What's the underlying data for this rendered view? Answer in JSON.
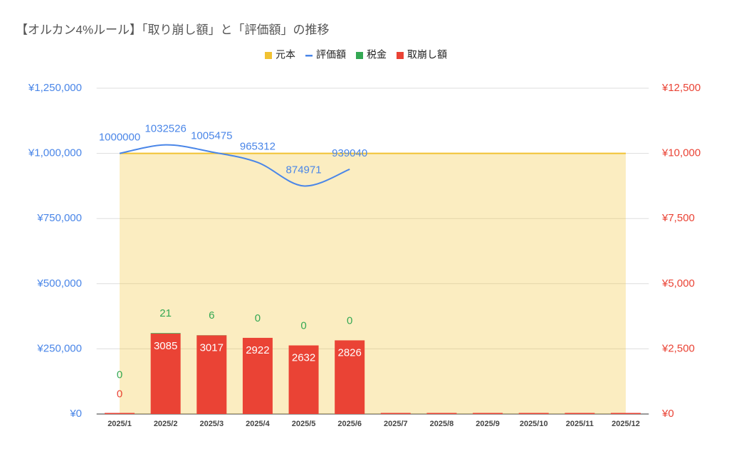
{
  "chart_data": {
    "type": "combo",
    "title": "【オルカン4%ルール】「取り崩し額」と「評価額」の推移",
    "categories": [
      "2025/1",
      "2025/2",
      "2025/3",
      "2025/4",
      "2025/5",
      "2025/6",
      "2025/7",
      "2025/8",
      "2025/9",
      "2025/10",
      "2025/11",
      "2025/12"
    ],
    "series": [
      {
        "name": "元本",
        "type": "area",
        "axis": "y",
        "color": "#f1c232",
        "values": [
          1000000,
          1000000,
          1000000,
          1000000,
          1000000,
          1000000,
          1000000,
          1000000,
          1000000,
          1000000,
          1000000,
          1000000
        ]
      },
      {
        "name": "評価額",
        "type": "line",
        "axis": "y",
        "color": "#4a86e8",
        "values": [
          1000000,
          1032526,
          1005475,
          965312,
          874971,
          939040,
          null,
          null,
          null,
          null,
          null,
          null
        ]
      },
      {
        "name": "税金",
        "type": "bar",
        "axis": "y2",
        "color": "#34a853",
        "values": [
          0,
          21,
          6,
          0,
          0,
          0,
          null,
          null,
          null,
          null,
          null,
          null
        ]
      },
      {
        "name": "取崩し額",
        "type": "bar",
        "axis": "y2",
        "color": "#ea4335",
        "values": [
          0,
          3085,
          3017,
          2922,
          2632,
          2826,
          0,
          0,
          0,
          0,
          0,
          0
        ],
        "value_labels": [
          "0",
          "3085",
          "3017",
          "2922",
          "2632",
          "2826",
          null,
          null,
          null,
          null,
          null,
          null
        ]
      }
    ],
    "ylim": [
      0,
      1250000
    ],
    "yticks": [
      {
        "value": 0,
        "label": "¥0"
      },
      {
        "value": 250000,
        "label": "¥250,000"
      },
      {
        "value": 500000,
        "label": "¥500,000"
      },
      {
        "value": 750000,
        "label": "¥750,000"
      },
      {
        "value": 1000000,
        "label": "¥1,000,000"
      },
      {
        "value": 1250000,
        "label": "¥1,250,000"
      }
    ],
    "y2lim": [
      0,
      12500
    ],
    "y2ticks": [
      {
        "value": 0,
        "label": "¥0"
      },
      {
        "value": 2500,
        "label": "¥2,500"
      },
      {
        "value": 5000,
        "label": "¥5,000"
      },
      {
        "value": 7500,
        "label": "¥7,500"
      },
      {
        "value": 10000,
        "label": "¥10,000"
      },
      {
        "value": 12500,
        "label": "¥12,500"
      }
    ],
    "grid": true,
    "legend": "top"
  }
}
